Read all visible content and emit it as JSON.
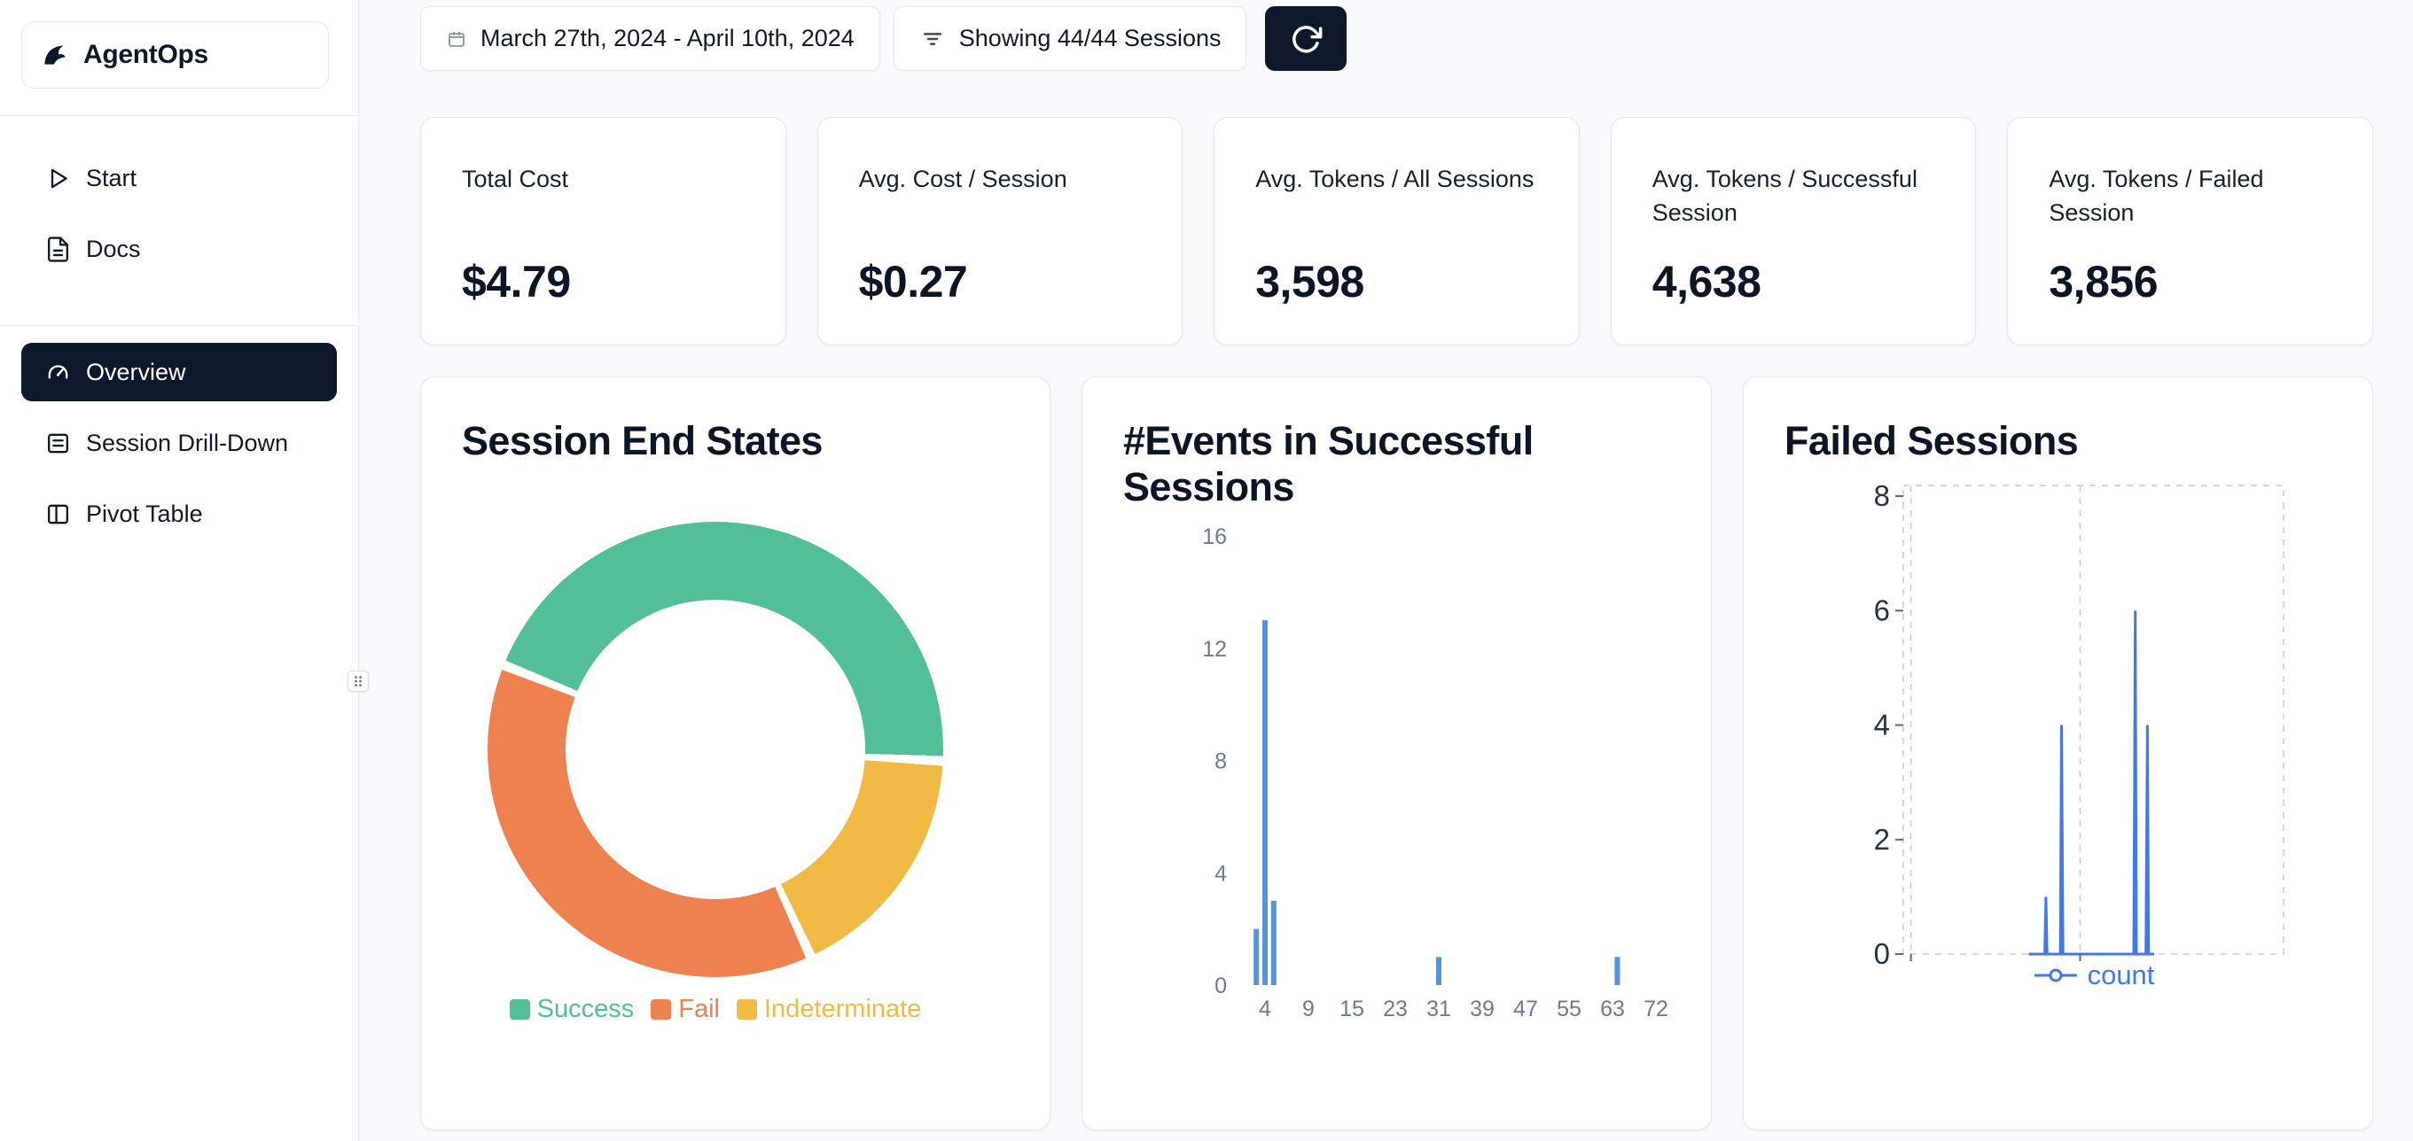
{
  "app": {
    "name": "AgentOps"
  },
  "sidebar": {
    "primary": [
      {
        "label": "Start"
      },
      {
        "label": "Docs"
      }
    ],
    "secondary": [
      {
        "label": "Overview",
        "active": true
      },
      {
        "label": "Session Drill-Down"
      },
      {
        "label": "Pivot Table"
      }
    ]
  },
  "topbar": {
    "date_range": "March 27th, 2024 - April 10th, 2024",
    "sessions_showing": "Showing 44/44 Sessions"
  },
  "stats": [
    {
      "label": "Total Cost",
      "value": "$4.79"
    },
    {
      "label": "Avg. Cost / Session",
      "value": "$0.27"
    },
    {
      "label": "Avg. Tokens / All Sessions",
      "value": "3,598"
    },
    {
      "label": "Avg. Tokens / Successful Session",
      "value": "4,638"
    },
    {
      "label": "Avg. Tokens / Failed Session",
      "value": "3,856"
    }
  ],
  "theme": {
    "accent_dark": "#0f172a",
    "card_border": "#e5e7eb",
    "background": "#f8fafc"
  },
  "chart_data": [
    {
      "type": "pie",
      "title": "Session End States",
      "donut": true,
      "rotation": -67,
      "gap_deg": 2.5,
      "segments": [
        {
          "label": "Success",
          "value": 45,
          "color": "#52bf96"
        },
        {
          "label": "Indeterminate",
          "value": 17,
          "color": "#f0ba45"
        },
        {
          "label": "Fail",
          "value": 38,
          "color": "#ed8150"
        }
      ],
      "legend_order": [
        "Success",
        "Fail",
        "Indeterminate"
      ],
      "legend_position": "bottom"
    },
    {
      "type": "bar",
      "title": "#Events in Successful Sessions",
      "x_ticks": [
        4,
        9,
        15,
        23,
        31,
        39,
        47,
        55,
        63,
        72
      ],
      "y_ticks": [
        0,
        4,
        8,
        12,
        16
      ],
      "ylim": [
        0,
        16
      ],
      "bars": [
        {
          "x": 3,
          "count": 2
        },
        {
          "x": 4,
          "count": 13
        },
        {
          "x": 5,
          "count": 3
        },
        {
          "x": 31,
          "count": 1
        },
        {
          "x": 64,
          "count": 1
        }
      ],
      "color": "#5494da",
      "grid": false
    },
    {
      "type": "line",
      "title": "Failed Sessions",
      "series_name": "count",
      "y_ticks": [
        0,
        2,
        4,
        6,
        8
      ],
      "ylim": [
        0,
        8
      ],
      "points": [
        [
          0.33,
          0
        ],
        [
          0.372,
          0
        ],
        [
          0.375,
          1
        ],
        [
          0.378,
          0
        ],
        [
          0.413,
          0
        ],
        [
          0.416,
          4
        ],
        [
          0.42,
          0
        ],
        [
          0.606,
          0
        ],
        [
          0.61,
          6
        ],
        [
          0.613,
          0
        ],
        [
          0.638,
          0
        ],
        [
          0.642,
          4
        ],
        [
          0.645,
          0
        ],
        [
          0.66,
          0
        ]
      ],
      "color": "#4479e4",
      "grid": "dashed",
      "grid_fx": [
        0.02,
        0.465
      ],
      "legend_position": "bottom"
    }
  ]
}
